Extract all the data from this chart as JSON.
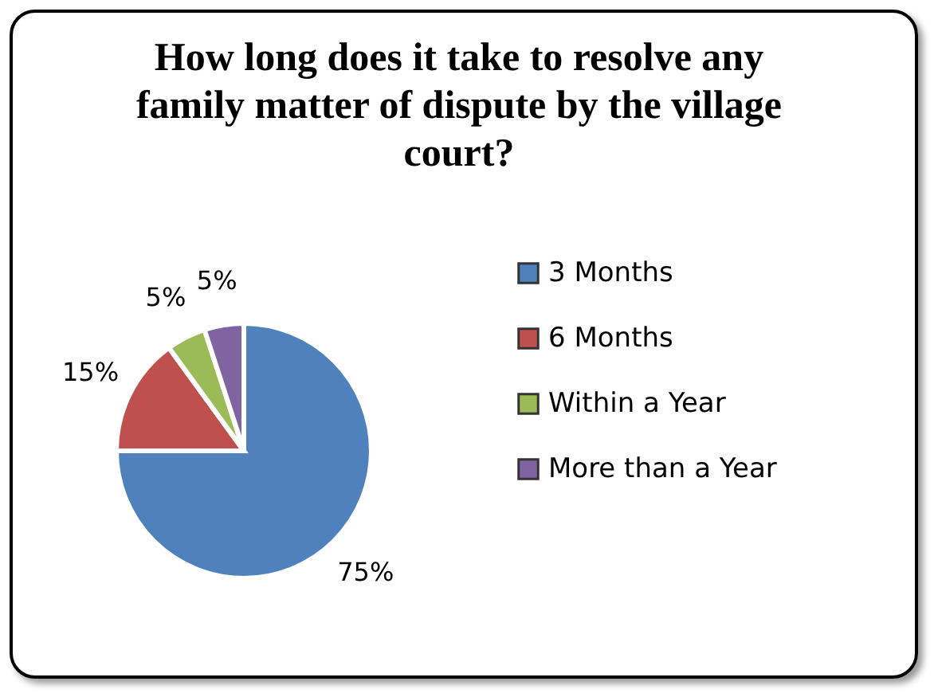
{
  "chart_data": {
    "type": "pie",
    "title": "How long does it take to resolve any family matter of dispute by the village court?",
    "categories": [
      "3 Months",
      "6 Months",
      "Within a Year",
      "More than a Year"
    ],
    "values": [
      75,
      15,
      5,
      5
    ],
    "colors": [
      "#4f81bd",
      "#c0504d",
      "#9bbb59",
      "#8064a2"
    ],
    "value_labels": [
      "75%",
      "15%",
      "5%",
      "5%"
    ],
    "legend": "right"
  }
}
